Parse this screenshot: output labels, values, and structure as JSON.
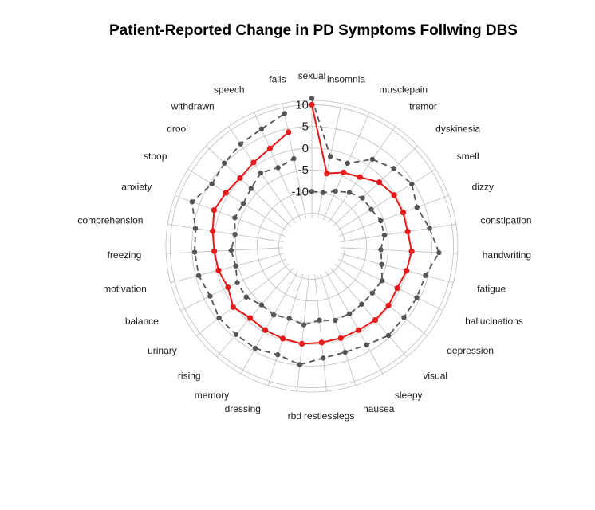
{
  "chart_data": {
    "type": "radar",
    "title": "Patient-Reported Change in PD Symptoms Follwing DBS",
    "categories": [
      "sexual",
      "insomnia",
      "musclepain",
      "tremor",
      "dyskinesia",
      "smell",
      "dizzy",
      "constipation",
      "handwriting",
      "fatigue",
      "hallucinations",
      "depression",
      "visual",
      "sleepy",
      "nausea",
      "restlesslegs",
      "rbd",
      "dressing",
      "memory",
      "rising",
      "urinary",
      "balance",
      "motivation",
      "freezing",
      "comprehension",
      "anxiety",
      "stoop",
      "drool",
      "withdrawn",
      "speech",
      "falls"
    ],
    "radial_ticks": [
      10,
      5,
      0,
      -5,
      -10
    ],
    "rlim": [
      -16,
      11
    ],
    "series": [
      {
        "style": "dashed",
        "color": "#555555",
        "values": [
          11.5,
          -1.5,
          -1.8,
          1.8,
          3.4,
          4.5,
          3.2,
          4.8,
          6.7,
          4.4,
          4.3,
          4.2,
          4.5,
          3.4,
          3.0,
          3.3,
          4.8,
          3.6,
          4.3,
          4.2,
          4.4,
          3.5,
          4.3,
          4.4,
          4.5,
          6.8,
          4.5,
          5.2,
          6.1,
          6.8,
          8.6
        ]
      },
      {
        "style": "dashed",
        "color": "#555555",
        "values": [
          -10,
          -10,
          -8.8,
          -7.5,
          -6.5,
          -6.5,
          -5.7,
          -5.7,
          -6.7,
          -6.0,
          -4.6,
          -5.0,
          -5.0,
          -4.8,
          -4.7,
          -5.5,
          -4.4,
          -5.2,
          -4.5,
          -4.8,
          -3.5,
          -3.5,
          -4.5,
          -4.0,
          -4.7,
          -3.7,
          -4.0,
          -3.3,
          -2.0,
          -2.9,
          -2.0
        ]
      },
      {
        "style": "solid",
        "color": "#e41a1c",
        "values": [
          10,
          -5.5,
          -4.1,
          -3.2,
          -1.2,
          -0.3,
          -0.2,
          -0.3,
          0.4,
          -0.1,
          -0.7,
          -0.3,
          -0.2,
          -0.5,
          -0.4,
          -0.3,
          0.0,
          -0.3,
          -0.5,
          -0.8,
          0.3,
          -1.1,
          -0.4,
          -0.1,
          0.5,
          1.4,
          0.7,
          0.2,
          0.9,
          1.9,
          4.2
        ]
      }
    ],
    "grid": true,
    "legend": "none"
  }
}
